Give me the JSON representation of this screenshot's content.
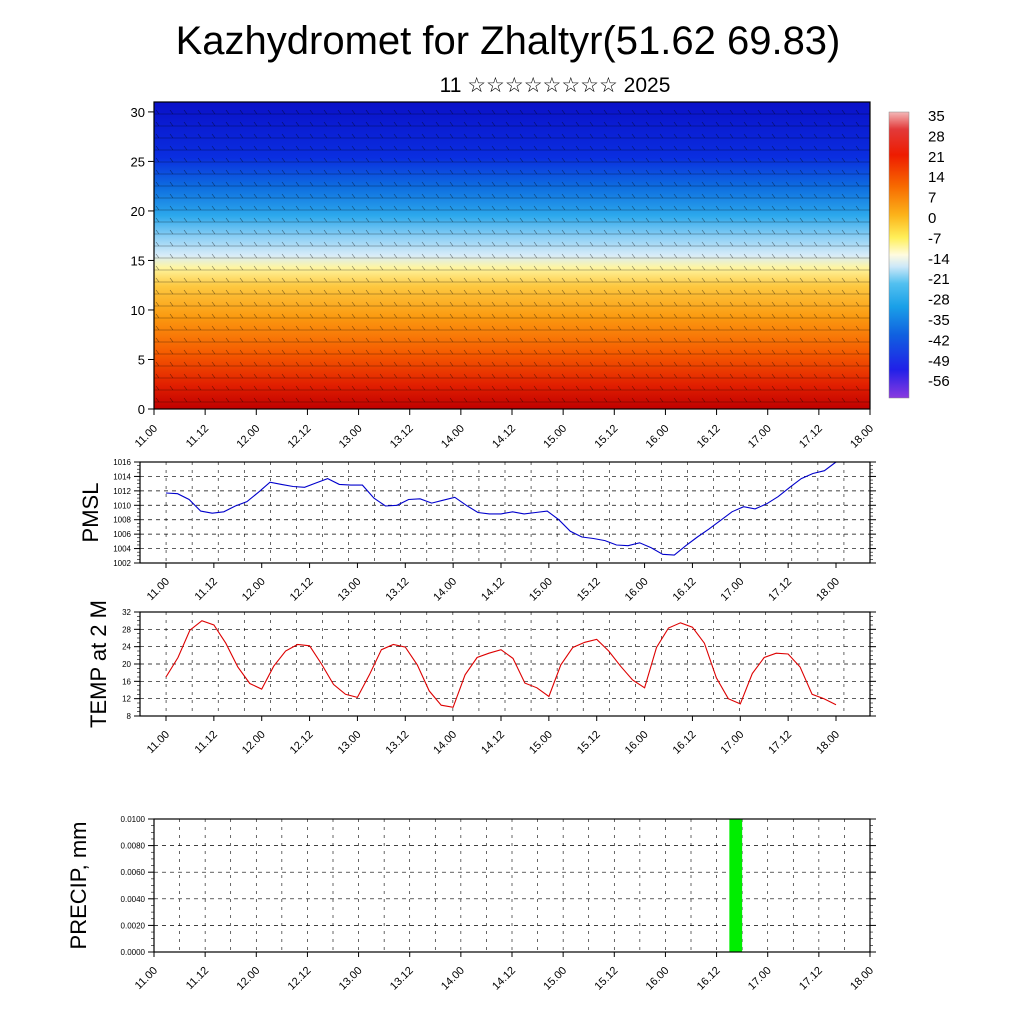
{
  "title": "Kazhydromet for Zhaltyr(51.62 69.83)",
  "subtitle": "11 ☆☆☆☆☆☆☆☆ 2025",
  "time_labels": [
    "11.00",
    "11.12",
    "12.00",
    "12.12",
    "13.00",
    "13.12",
    "14.00",
    "14.12",
    "15.00",
    "15.12",
    "16.00",
    "16.12",
    "17.00",
    "17.12",
    "18.00"
  ],
  "chart_data": [
    {
      "type": "heatmap",
      "name": "temperature-wind-cross-section",
      "x": [
        "11.00",
        "11.12",
        "12.00",
        "12.12",
        "13.00",
        "13.12",
        "14.00",
        "14.12",
        "15.00",
        "15.12",
        "16.00",
        "16.12",
        "17.00",
        "17.12",
        "18.00"
      ],
      "yticks": [
        0,
        5,
        10,
        15,
        20,
        25,
        30
      ],
      "ylim": [
        0,
        31
      ],
      "colorbar_labels": [
        "35",
        "28",
        "21",
        "14",
        "7",
        "0",
        "-7",
        "-14",
        "-21",
        "-28",
        "-35",
        "-42",
        "-49",
        "-56"
      ],
      "colorbar_range": [
        -60,
        38
      ],
      "vectors": "wind barbs overlay"
    },
    {
      "type": "line",
      "name": "pmsl",
      "ylabel": "PMSL",
      "ylim": [
        1002,
        1016
      ],
      "yticks": [
        "1016",
        "1014",
        "1012",
        "1010",
        "1008",
        "1006",
        "1004",
        "1002"
      ],
      "xlabels": [
        "11.00",
        "11.12",
        "12.00",
        "12.12",
        "13.00",
        "13.12",
        "14.00",
        "14.12",
        "15.00",
        "15.12",
        "16.00",
        "16.12",
        "17.00",
        "17.12",
        "18.00"
      ],
      "color": "#0000cc",
      "values": [
        1011.7,
        1011.6,
        1010.8,
        1009.2,
        1008.9,
        1009.1,
        1009.9,
        1010.5,
        1011.8,
        1013.2,
        1012.9,
        1012.6,
        1012.5,
        1013.1,
        1013.7,
        1012.9,
        1012.8,
        1012.8,
        1011.0,
        1009.9,
        1010.0,
        1010.8,
        1010.9,
        1010.3,
        1010.7,
        1011.1,
        1010.0,
        1009.0,
        1008.8,
        1008.8,
        1009.1,
        1008.8,
        1009.0,
        1009.2,
        1008.0,
        1006.4,
        1005.6,
        1005.4,
        1005.1,
        1004.5,
        1004.4,
        1004.8,
        1004.1,
        1003.2,
        1003.1,
        1004.4,
        1005.6,
        1006.7,
        1007.9,
        1009.1,
        1009.8,
        1009.5,
        1010.2,
        1011.2,
        1012.5,
        1013.7,
        1014.4,
        1014.8,
        1016.0
      ]
    },
    {
      "type": "line",
      "name": "temp-2m",
      "ylabel": "TEMP at 2 M",
      "ylim": [
        8,
        32
      ],
      "yticks": [
        "32",
        "28",
        "24",
        "20",
        "16",
        "12",
        "8"
      ],
      "xlabels": [
        "11.00",
        "11.12",
        "12.00",
        "12.12",
        "13.00",
        "13.12",
        "14.00",
        "14.12",
        "15.00",
        "15.12",
        "16.00",
        "16.12",
        "17.00",
        "17.12",
        "18.00"
      ],
      "color": "#dd0000",
      "values": [
        17.0,
        21.5,
        27.8,
        30.0,
        29.0,
        24.8,
        19.3,
        15.5,
        14.2,
        19.5,
        23.0,
        24.5,
        24.2,
        20.0,
        15.3,
        13.0,
        12.3,
        17.5,
        23.3,
        24.5,
        23.9,
        19.8,
        13.8,
        10.5,
        10.0,
        17.5,
        21.5,
        22.5,
        23.3,
        21.3,
        15.6,
        14.5,
        12.5,
        19.8,
        23.8,
        25.0,
        25.7,
        23.0,
        19.5,
        16.3,
        14.5,
        23.8,
        28.3,
        29.5,
        28.5,
        24.8,
        16.8,
        12.0,
        10.8,
        17.8,
        21.5,
        22.5,
        22.3,
        19.3,
        13.0,
        12.0,
        10.6
      ]
    },
    {
      "type": "bar",
      "name": "precipitation",
      "ylabel": "PRECIP, mm",
      "ylim": [
        0,
        0.01
      ],
      "yticks": [
        "0.0100",
        "0.0080",
        "0.0060",
        "0.0040",
        "0.0020",
        "0.0000"
      ],
      "xlabels": [
        "11.00",
        "11.12",
        "12.00",
        "12.12",
        "13.00",
        "13.12",
        "14.00",
        "14.12",
        "15.00",
        "15.12",
        "16.00",
        "16.12",
        "17.00",
        "17.12",
        "18.00"
      ],
      "color": "#00ee00",
      "bars": [
        {
          "x_hours": 135,
          "width_hours": 3,
          "value": 0.01
        }
      ]
    }
  ]
}
